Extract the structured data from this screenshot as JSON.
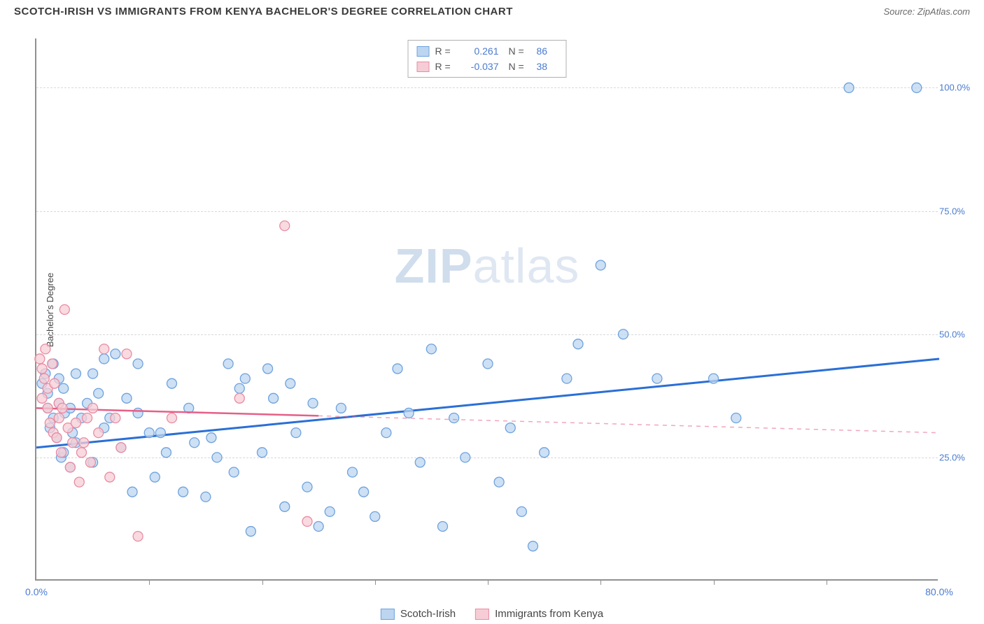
{
  "title": "SCOTCH-IRISH VS IMMIGRANTS FROM KENYA BACHELOR'S DEGREE CORRELATION CHART",
  "source": "Source: ZipAtlas.com",
  "ylabel": "Bachelor's Degree",
  "watermark_a": "ZIP",
  "watermark_b": "atlas",
  "chart": {
    "type": "scatter",
    "xlim": [
      0,
      80
    ],
    "ylim": [
      0,
      110
    ],
    "yticks": [
      {
        "v": 25,
        "label": "25.0%"
      },
      {
        "v": 50,
        "label": "50.0%"
      },
      {
        "v": 75,
        "label": "75.0%"
      },
      {
        "v": 100,
        "label": "100.0%"
      }
    ],
    "xticks_minor": [
      10,
      20,
      30,
      40,
      50,
      60,
      70
    ],
    "xticks_labeled": [
      {
        "v": 0,
        "label": "0.0%"
      },
      {
        "v": 80,
        "label": "80.0%"
      }
    ],
    "grid_color": "#d9d9d9",
    "background_color": "#ffffff",
    "marker_radius": 7,
    "series": [
      {
        "name": "Scotch-Irish",
        "fill": "#bcd5f0",
        "stroke": "#6ea2de",
        "regression": {
          "x1": 0,
          "y1": 27,
          "x2": 80,
          "y2": 45,
          "color": "#2a6fd6",
          "width": 3,
          "dash_after_x": null
        },
        "points": [
          [
            0.5,
            40
          ],
          [
            0.8,
            42
          ],
          [
            1,
            38
          ],
          [
            1,
            35
          ],
          [
            1.2,
            31
          ],
          [
            1.5,
            44
          ],
          [
            1.5,
            33
          ],
          [
            1.8,
            29
          ],
          [
            2,
            36
          ],
          [
            2,
            41
          ],
          [
            2.2,
            25
          ],
          [
            2.4,
            26
          ],
          [
            2.4,
            39
          ],
          [
            2.5,
            34
          ],
          [
            3,
            35
          ],
          [
            3,
            23
          ],
          [
            3.2,
            30
          ],
          [
            3.5,
            42
          ],
          [
            3.5,
            28
          ],
          [
            4,
            33
          ],
          [
            4.5,
            36
          ],
          [
            5,
            24
          ],
          [
            5,
            42
          ],
          [
            5.5,
            38
          ],
          [
            6,
            31
          ],
          [
            6,
            45
          ],
          [
            6.5,
            33
          ],
          [
            7,
            46
          ],
          [
            7.5,
            27
          ],
          [
            8,
            37
          ],
          [
            8.5,
            18
          ],
          [
            9,
            34
          ],
          [
            9,
            44
          ],
          [
            10,
            30
          ],
          [
            10.5,
            21
          ],
          [
            11,
            30
          ],
          [
            11.5,
            26
          ],
          [
            12,
            40
          ],
          [
            13,
            18
          ],
          [
            13.5,
            35
          ],
          [
            14,
            28
          ],
          [
            15,
            17
          ],
          [
            15.5,
            29
          ],
          [
            16,
            25
          ],
          [
            17,
            44
          ],
          [
            17.5,
            22
          ],
          [
            18,
            39
          ],
          [
            18.5,
            41
          ],
          [
            19,
            10
          ],
          [
            20,
            26
          ],
          [
            20.5,
            43
          ],
          [
            21,
            37
          ],
          [
            22,
            15
          ],
          [
            22.5,
            40
          ],
          [
            23,
            30
          ],
          [
            24,
            19
          ],
          [
            24.5,
            36
          ],
          [
            25,
            11
          ],
          [
            26,
            14
          ],
          [
            27,
            35
          ],
          [
            28,
            22
          ],
          [
            29,
            18
          ],
          [
            30,
            13
          ],
          [
            31,
            30
          ],
          [
            32,
            43
          ],
          [
            33,
            34
          ],
          [
            34,
            24
          ],
          [
            35,
            47
          ],
          [
            36,
            11
          ],
          [
            37,
            33
          ],
          [
            38,
            25
          ],
          [
            40,
            44
          ],
          [
            41,
            20
          ],
          [
            42,
            31
          ],
          [
            43,
            14
          ],
          [
            44,
            7
          ],
          [
            45,
            26
          ],
          [
            47,
            41
          ],
          [
            48,
            48
          ],
          [
            50,
            64
          ],
          [
            52,
            50
          ],
          [
            55,
            41
          ],
          [
            60,
            41
          ],
          [
            62,
            33
          ],
          [
            72,
            100
          ],
          [
            78,
            100
          ]
        ],
        "R": "0.261",
        "N": "86"
      },
      {
        "name": "Immigrants from Kenya",
        "fill": "#f6cdd6",
        "stroke": "#e98ba3",
        "regression": {
          "x1": 0,
          "y1": 35,
          "x2": 80,
          "y2": 30,
          "color": "#e65f87",
          "width": 2.5,
          "dash_after_x": 25
        },
        "points": [
          [
            0.3,
            45
          ],
          [
            0.5,
            43
          ],
          [
            0.5,
            37
          ],
          [
            0.7,
            41
          ],
          [
            0.8,
            47
          ],
          [
            1,
            35
          ],
          [
            1,
            39
          ],
          [
            1.2,
            32
          ],
          [
            1.4,
            44
          ],
          [
            1.5,
            30
          ],
          [
            1.6,
            40
          ],
          [
            1.8,
            29
          ],
          [
            2,
            36
          ],
          [
            2,
            33
          ],
          [
            2.2,
            26
          ],
          [
            2.3,
            35
          ],
          [
            2.5,
            55
          ],
          [
            2.8,
            31
          ],
          [
            3,
            23
          ],
          [
            3.2,
            28
          ],
          [
            3.5,
            32
          ],
          [
            3.8,
            20
          ],
          [
            4,
            26
          ],
          [
            4.2,
            28
          ],
          [
            4.5,
            33
          ],
          [
            4.8,
            24
          ],
          [
            5,
            35
          ],
          [
            5.5,
            30
          ],
          [
            6,
            47
          ],
          [
            6.5,
            21
          ],
          [
            7,
            33
          ],
          [
            7.5,
            27
          ],
          [
            8,
            46
          ],
          [
            9,
            9
          ],
          [
            12,
            33
          ],
          [
            18,
            37
          ],
          [
            22,
            72
          ],
          [
            24,
            12
          ]
        ],
        "R": "-0.037",
        "N": "38"
      }
    ]
  },
  "legend_bottom": [
    {
      "label": "Scotch-Irish",
      "fill": "#bcd5f0",
      "stroke": "#6ea2de"
    },
    {
      "label": "Immigrants from Kenya",
      "fill": "#f6cdd6",
      "stroke": "#e98ba3"
    }
  ]
}
